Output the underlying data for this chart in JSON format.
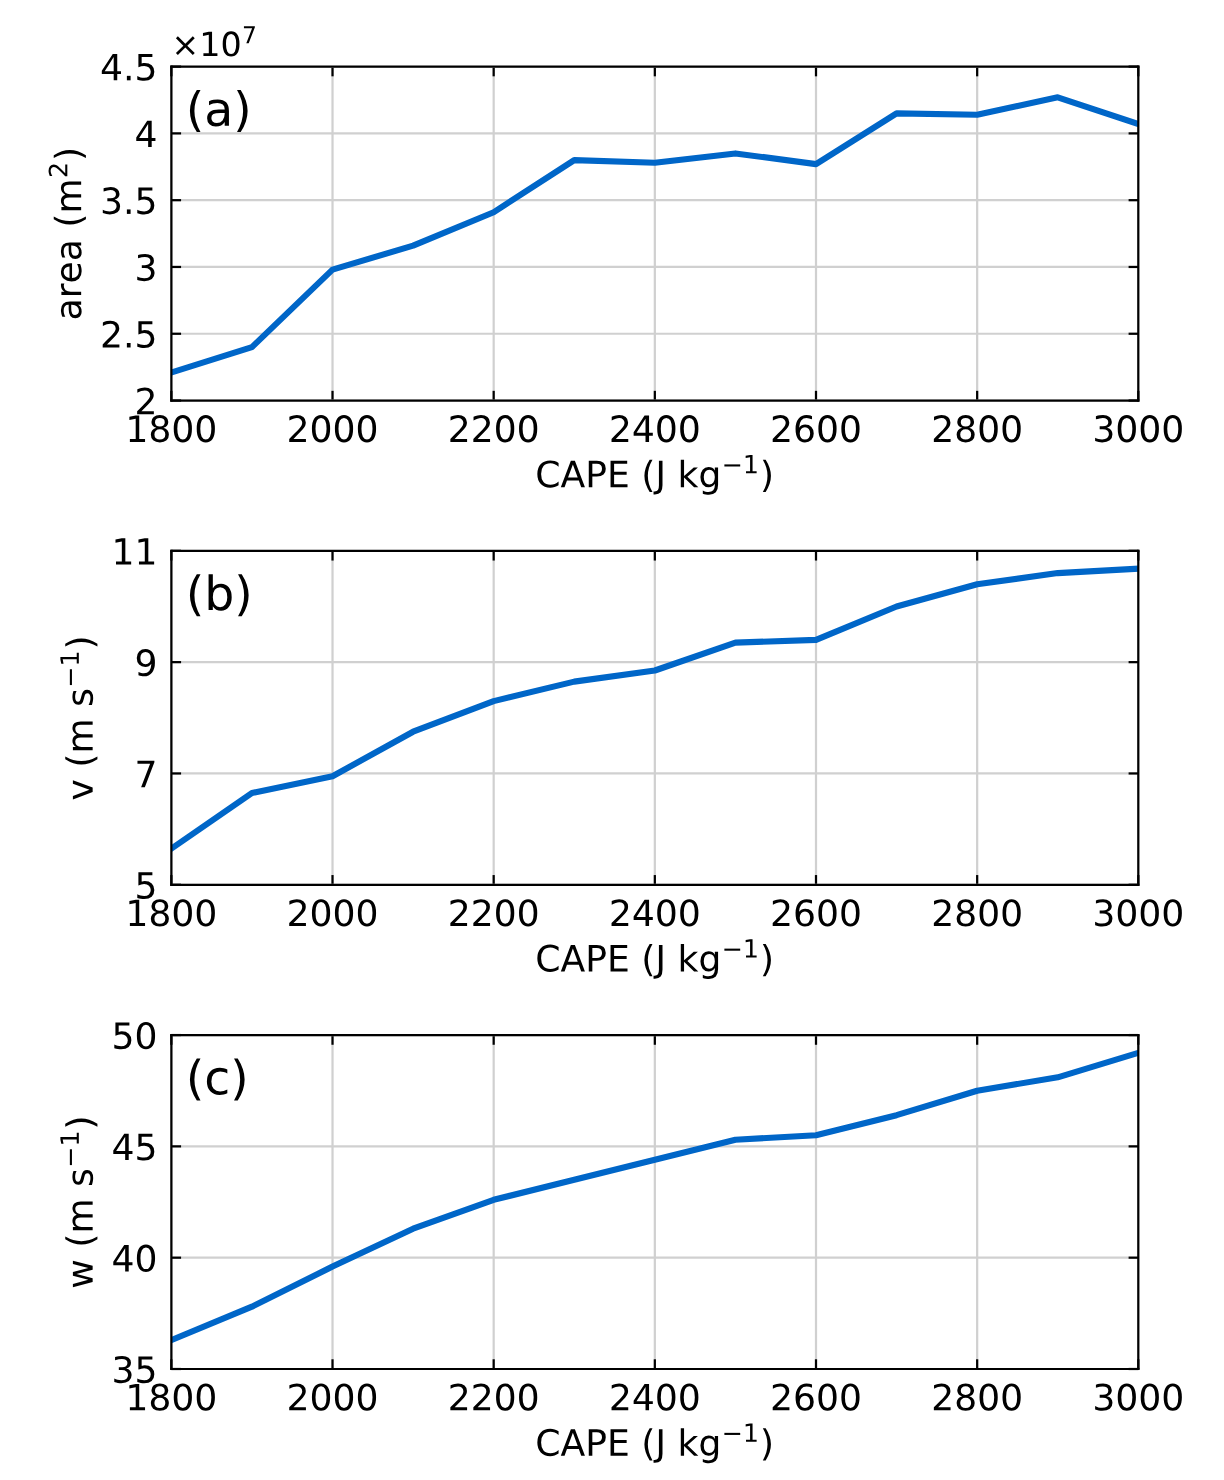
{
  "chart_data": [
    {
      "type": "line",
      "xlabel": "CAPE (J kg$^{−1}$)",
      "ylabel": "area (m$^{2}$)",
      "annotations": [
        "(a)",
        "×10$^{7}$"
      ],
      "x": [
        1800,
        1900,
        2000,
        2100,
        2200,
        2300,
        2400,
        2500,
        2600,
        2700,
        2800,
        2900,
        3000
      ],
      "series": [
        {
          "color": "#0066c8",
          "values": [
            2.21,
            2.4,
            2.98,
            3.16,
            3.41,
            3.8,
            3.78,
            3.85,
            3.77,
            4.15,
            4.14,
            4.27,
            4.07
          ]
        }
      ],
      "xlim": [
        1800,
        3000
      ],
      "xticks": [
        1800,
        2000,
        2200,
        2400,
        2600,
        2800,
        3000
      ],
      "ylim": [
        2,
        4.5
      ],
      "yticks": [
        2,
        2.5,
        3,
        3.5,
        4,
        4.5
      ],
      "grid": true,
      "line_style": "solid",
      "marker": "none"
    },
    {
      "type": "line",
      "xlabel": "CAPE (J kg$^{−1}$)",
      "ylabel": "v (m s$^{−1}$)",
      "annotations": [
        "(b)"
      ],
      "x": [
        1800,
        1900,
        2000,
        2100,
        2200,
        2300,
        2400,
        2500,
        2600,
        2700,
        2800,
        2900,
        3000
      ],
      "series": [
        {
          "color": "#0066c8",
          "values": [
            5.65,
            6.65,
            6.95,
            7.75,
            8.3,
            8.65,
            8.85,
            9.35,
            9.4,
            10.0,
            10.4,
            10.6,
            10.68
          ]
        }
      ],
      "xlim": [
        1800,
        3000
      ],
      "xticks": [
        1800,
        2000,
        2200,
        2400,
        2600,
        2800,
        3000
      ],
      "ylim": [
        5,
        11
      ],
      "yticks": [
        5,
        7,
        9,
        11
      ],
      "grid": true,
      "line_style": "solid",
      "marker": "none"
    },
    {
      "type": "line",
      "xlabel": "CAPE (J kg$^{−1}$)",
      "ylabel": "w (m s$^{−1}$)",
      "annotations": [
        "(c)"
      ],
      "x": [
        1800,
        1900,
        2000,
        2100,
        2200,
        2300,
        2400,
        2500,
        2600,
        2700,
        2800,
        2900,
        3000
      ],
      "series": [
        {
          "color": "#0066c8",
          "values": [
            36.3,
            37.8,
            39.6,
            41.3,
            42.6,
            43.5,
            44.4,
            45.3,
            45.5,
            46.4,
            47.5,
            48.1,
            49.2
          ]
        }
      ],
      "xlim": [
        1800,
        3000
      ],
      "xticks": [
        1800,
        2000,
        2200,
        2400,
        2600,
        2800,
        3000
      ],
      "ylim": [
        35,
        50
      ],
      "yticks": [
        35,
        40,
        45,
        50
      ],
      "grid": true,
      "line_style": "solid",
      "marker": "none"
    }
  ]
}
